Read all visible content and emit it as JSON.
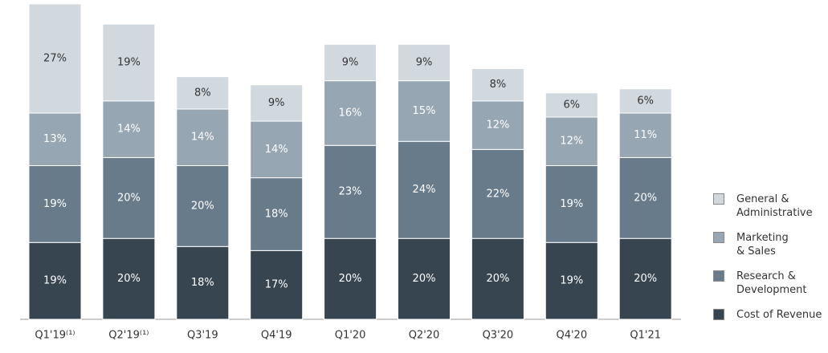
{
  "chart_data": {
    "type": "stacked-bar",
    "categories": [
      "Q1'19⁽¹⁾",
      "Q2'19⁽¹⁾",
      "Q3'19",
      "Q4'19",
      "Q1'20",
      "Q2'20",
      "Q3'20",
      "Q4'20",
      "Q1'21"
    ],
    "series": [
      {
        "name": "Cost of Revenue",
        "color": "#36454f",
        "label_color": "#ffffff",
        "values": [
          19,
          20,
          18,
          17,
          20,
          20,
          20,
          19,
          20
        ],
        "value_labels": [
          "19%",
          "20%",
          "18%",
          "17%",
          "20%",
          "20%",
          "20%",
          "19%",
          "20%"
        ]
      },
      {
        "name": "Research &\nDevelopment",
        "color": "#687b8a",
        "label_color": "#ffffff",
        "values": [
          19,
          20,
          20,
          18,
          23,
          24,
          22,
          19,
          20
        ],
        "value_labels": [
          "19%",
          "20%",
          "20%",
          "18%",
          "23%",
          "24%",
          "22%",
          "19%",
          "20%"
        ]
      },
      {
        "name": "Marketing\n& Sales",
        "color": "#97a6b3",
        "label_color": "#ffffff",
        "values": [
          13,
          14,
          14,
          14,
          16,
          15,
          12,
          12,
          11
        ],
        "value_labels": [
          "13%",
          "14%",
          "14%",
          "14%",
          "16%",
          "15%",
          "12%",
          "12%",
          "11%"
        ]
      },
      {
        "name": "General &\nAdministrative",
        "color": "#d1d9df",
        "label_color": "#333333",
        "values": [
          27,
          19,
          8,
          9,
          9,
          9,
          8,
          6,
          6
        ],
        "value_labels": [
          "27%",
          "19%",
          "8%",
          "9%",
          "9%",
          "9%",
          "8%",
          "6%",
          "6%"
        ]
      }
    ],
    "legend": "right"
  }
}
